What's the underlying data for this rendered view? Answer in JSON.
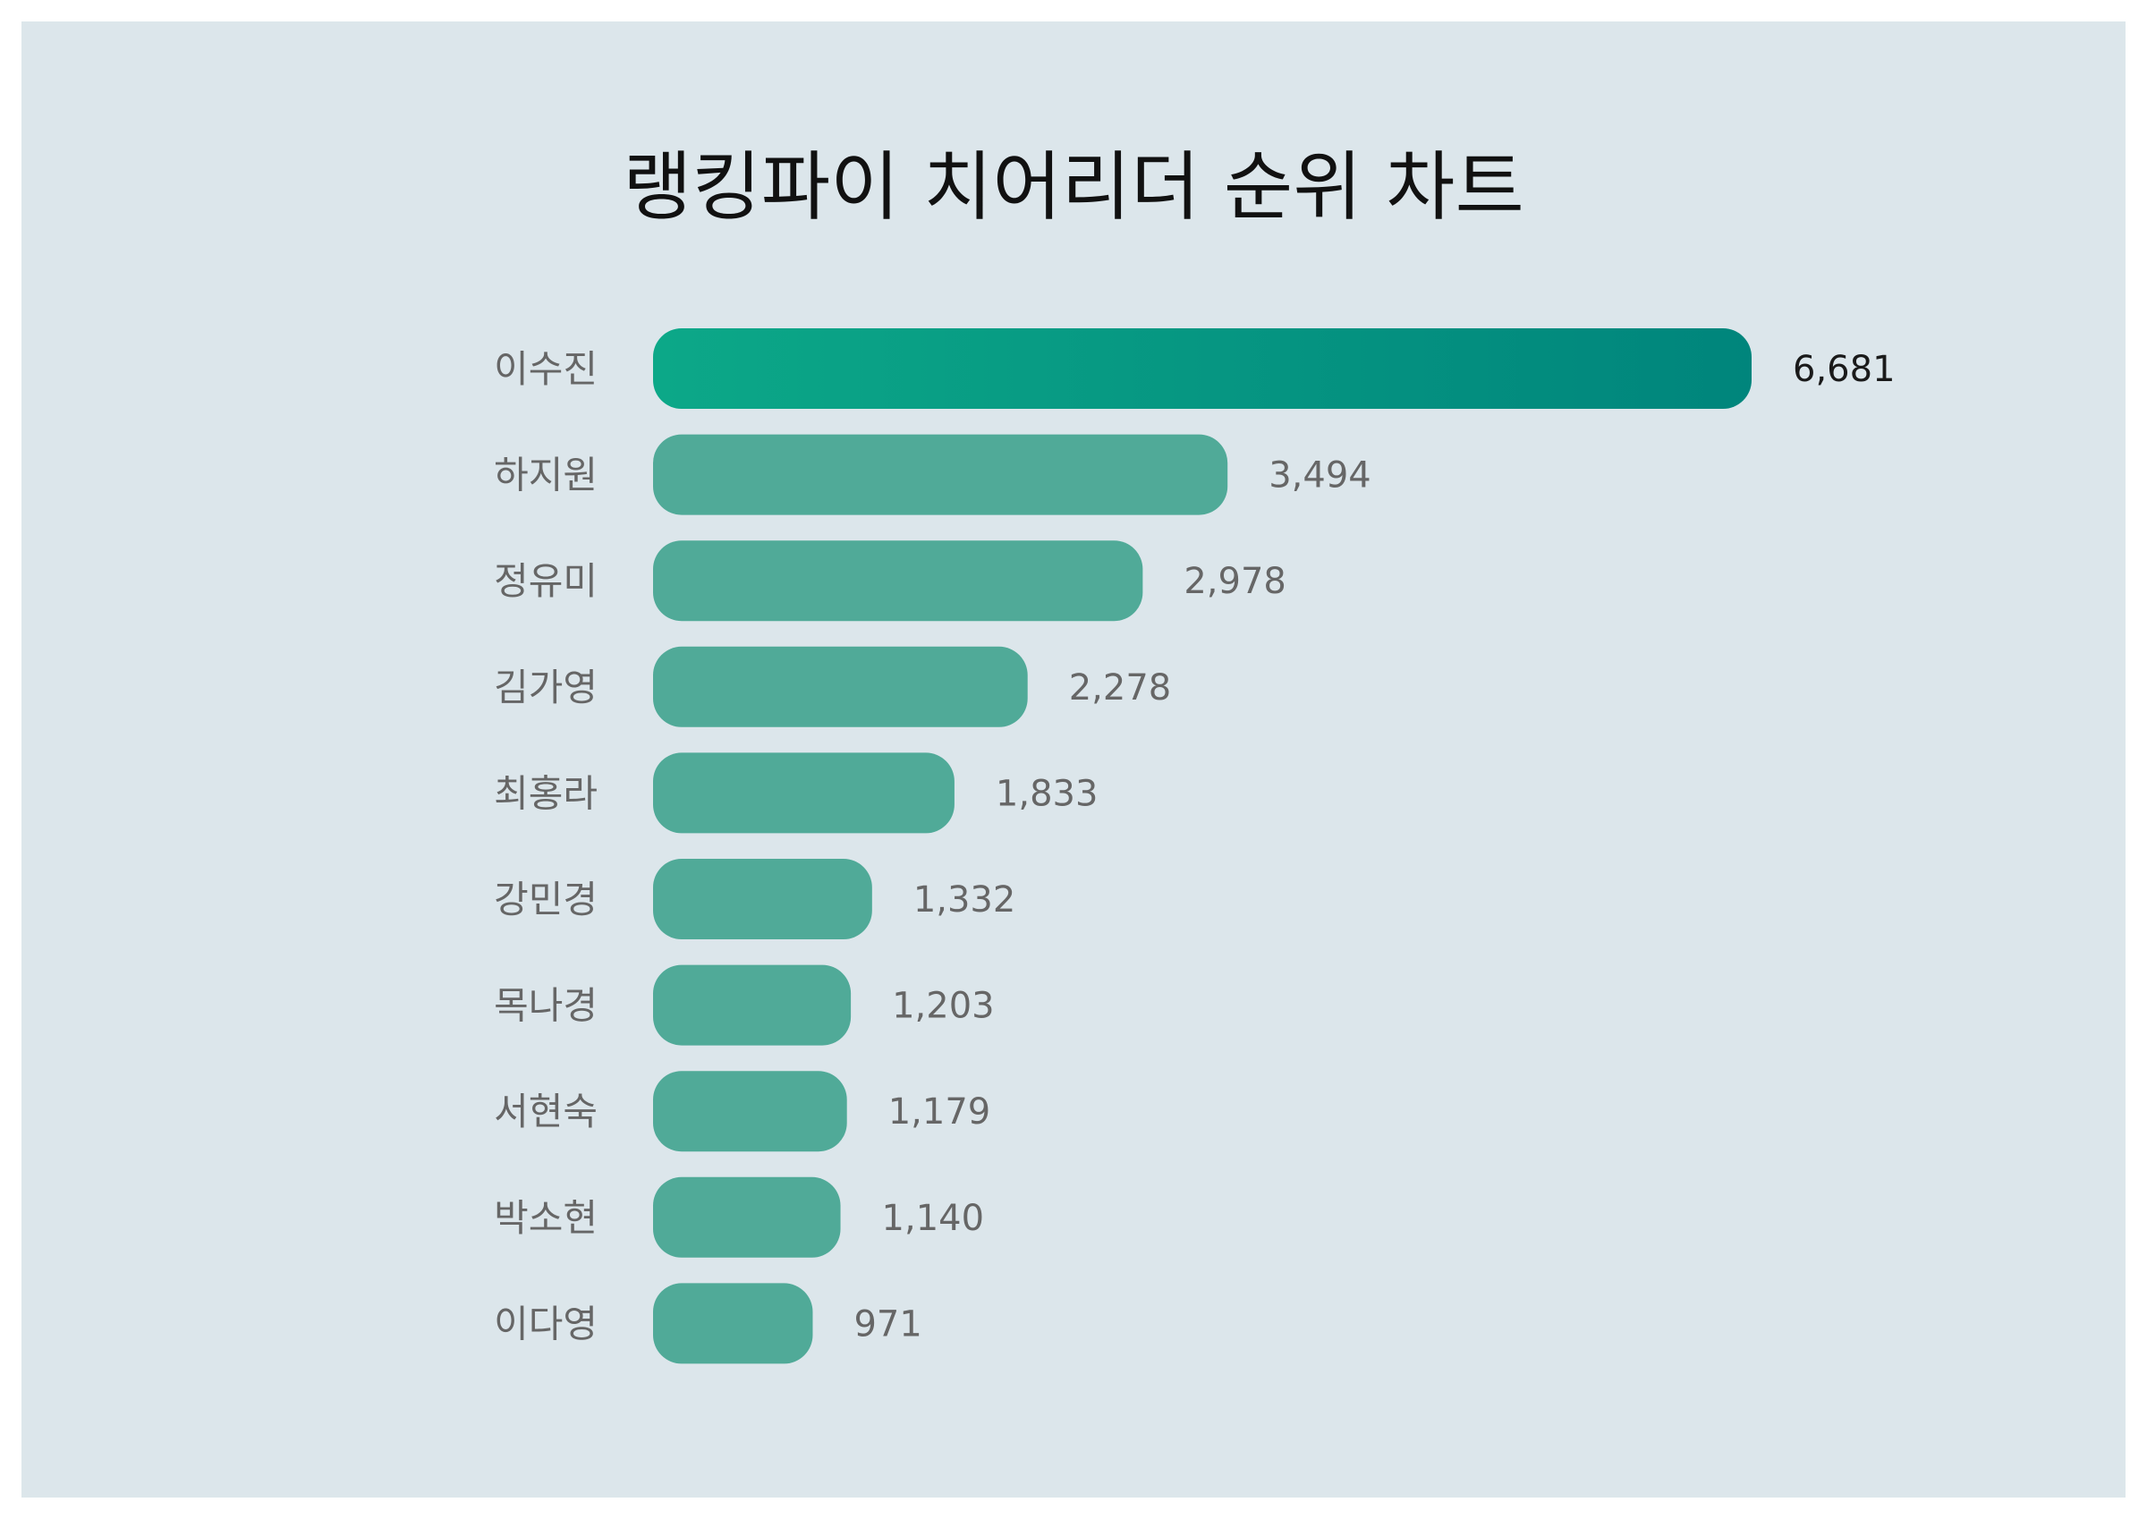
{
  "chart_data": {
    "type": "bar",
    "orientation": "horizontal",
    "title": "랭킹파이 치어리더 순위 차트",
    "categories": [
      "이수진",
      "하지원",
      "정유미",
      "김가영",
      "최홍라",
      "강민경",
      "목나경",
      "서현숙",
      "박소현",
      "이다영"
    ],
    "values": [
      6681,
      3494,
      2978,
      2278,
      1833,
      1332,
      1203,
      1179,
      1140,
      971
    ],
    "value_labels": [
      "6,681",
      "3,494",
      "2,978",
      "2,278",
      "1,833",
      "1,332",
      "1,203",
      "1,179",
      "1,140",
      "971"
    ],
    "xlim": [
      0,
      6681
    ],
    "grid": false,
    "legend": "none",
    "colors": {
      "background": "#dce6eb",
      "bar": "#50aa98",
      "top_bar_gradient_start": "#0ca888",
      "top_bar_gradient_end": "#00857c"
    }
  }
}
